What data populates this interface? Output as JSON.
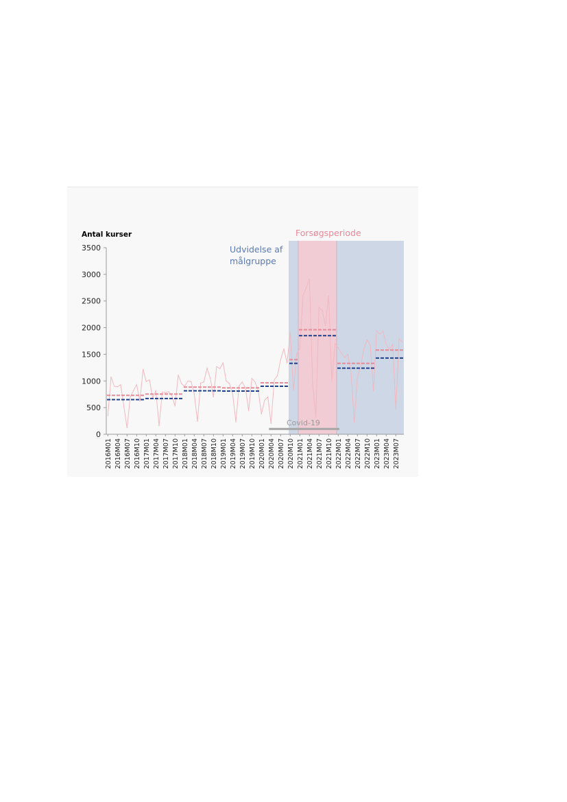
{
  "chart_data": {
    "type": "line",
    "title": "",
    "ylabel": "Antal kurser",
    "xlabel": "",
    "ylim": [
      0,
      3500
    ],
    "yticks": [
      0,
      500,
      1000,
      1500,
      2000,
      2500,
      3000,
      3500
    ],
    "grid": false,
    "colors": {
      "line": "#f2b8c0",
      "mean_a": "#e58a96",
      "mean_b": "#1f3e8c",
      "band_blue": "#ced7e6",
      "band_pink": "#f2ccd4",
      "covid_bar": "#a6a6a6",
      "udvidelse_text": "#5b79b0",
      "forsog_text": "#e8899a",
      "covid_text": "#9a9a9a"
    },
    "x_tick_labels": [
      "2016M01",
      "2016M04",
      "2016M07",
      "2016M10",
      "2017M01",
      "2017M04",
      "2017M07",
      "2017M10",
      "2018M01",
      "2018M04",
      "2018M07",
      "2018M10",
      "2019M01",
      "2019M04",
      "2019M07",
      "2019M10",
      "2020M01",
      "2020M04",
      "2020M07",
      "2020M10",
      "2021M01",
      "2021M04",
      "2021M07",
      "2021M10",
      "2022M01",
      "2022M04",
      "2022M07",
      "2022M10",
      "2023M01",
      "2023M04",
      "2023M07"
    ],
    "x_start": "2016M01",
    "x_end": "2023M09",
    "series": [
      {
        "values": [
          350,
          1080,
          900,
          890,
          930,
          520,
          120,
          700,
          820,
          930,
          620,
          1220,
          990,
          1020,
          680,
          820,
          160,
          790,
          780,
          800,
          720,
          530,
          1110,
          950,
          900,
          1000,
          990,
          760,
          240,
          960,
          980,
          1240,
          1050,
          700,
          1270,
          1230,
          1340,
          1000,
          950,
          760,
          230,
          910,
          980,
          870,
          440,
          1050,
          980,
          820,
          380,
          640,
          700,
          200,
          1020,
          1100,
          1400,
          1600,
          1340,
          1910,
          820,
          1500,
          1610,
          2600,
          2750,
          2910,
          950,
          320,
          2380,
          2320,
          2040,
          2600,
          1000,
          1700,
          1620,
          1520,
          1440,
          1500,
          1160,
          220,
          1060,
          1280,
          1600,
          1770,
          1680,
          810,
          1940,
          1880,
          1930,
          1680,
          1590,
          1680,
          470,
          1790,
          1730
        ]
      }
    ],
    "mean_lines": [
      {
        "x_from": "2016M01",
        "x_to": "2016M12",
        "a": 730,
        "b": 650
      },
      {
        "x_from": "2017M01",
        "x_to": "2017M12",
        "a": 755,
        "b": 670
      },
      {
        "x_from": "2018M01",
        "x_to": "2018M12",
        "a": 885,
        "b": 815
      },
      {
        "x_from": "2019M01",
        "x_to": "2019M12",
        "a": 870,
        "b": 810
      },
      {
        "x_from": "2020M01",
        "x_to": "2020M09",
        "a": 965,
        "b": 900
      },
      {
        "x_from": "2020M10",
        "x_to": "2020M12",
        "a": 1400,
        "b": 1330
      },
      {
        "x_from": "2021M01",
        "x_to": "2021M12",
        "a": 1960,
        "b": 1850
      },
      {
        "x_from": "2022M01",
        "x_to": "2022M12",
        "a": 1330,
        "b": 1240
      },
      {
        "x_from": "2023M01",
        "x_to": "2023M09",
        "a": 1580,
        "b": 1430
      }
    ],
    "bands": [
      {
        "x_from": "2020M10",
        "x_to": "2020M12",
        "color": "blue"
      },
      {
        "x_from": "2021M01",
        "x_to": "2021M12",
        "color": "pink"
      },
      {
        "x_from": "2022M01",
        "x_to": "2023M09",
        "color": "blue"
      }
    ],
    "annotations": {
      "udvidelse_line1": "Udvidelse af",
      "udvidelse_line2": "målgruppe",
      "forsog": "Forsøgsperiode",
      "covid": "Covid-19"
    },
    "covid_period": {
      "x_from": "2020M03",
      "x_to": "2021M12",
      "y": 100
    }
  }
}
